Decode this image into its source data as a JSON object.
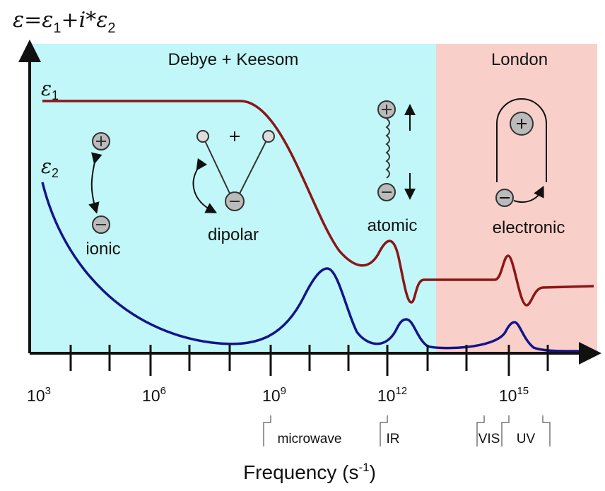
{
  "formula": {
    "lhs": "ε=ε",
    "sub1": "1",
    "mid": "+i*ε",
    "sub2": "2"
  },
  "regions": {
    "left": "Debye + Keesom",
    "right": "London"
  },
  "curves": {
    "eps1": {
      "symbol": "ε",
      "sub": "1"
    },
    "eps2": {
      "symbol": "ε",
      "sub": "2"
    }
  },
  "mechanisms": {
    "ionic": "ionic",
    "dipolar": "dipolar",
    "atomic": "atomic",
    "electronic": "electronic"
  },
  "x_axis": {
    "ticks": [
      {
        "base": "10",
        "exp": "3"
      },
      {
        "base": "10",
        "exp": "6"
      },
      {
        "base": "10",
        "exp": "9"
      },
      {
        "base": "10",
        "exp": "12"
      },
      {
        "base": "10",
        "exp": "15"
      }
    ],
    "bands": [
      "microwave",
      "IR",
      "VIS",
      "UV"
    ],
    "label": {
      "text": "Frequency (s",
      "exp": "-1",
      "end": ")"
    }
  }
}
